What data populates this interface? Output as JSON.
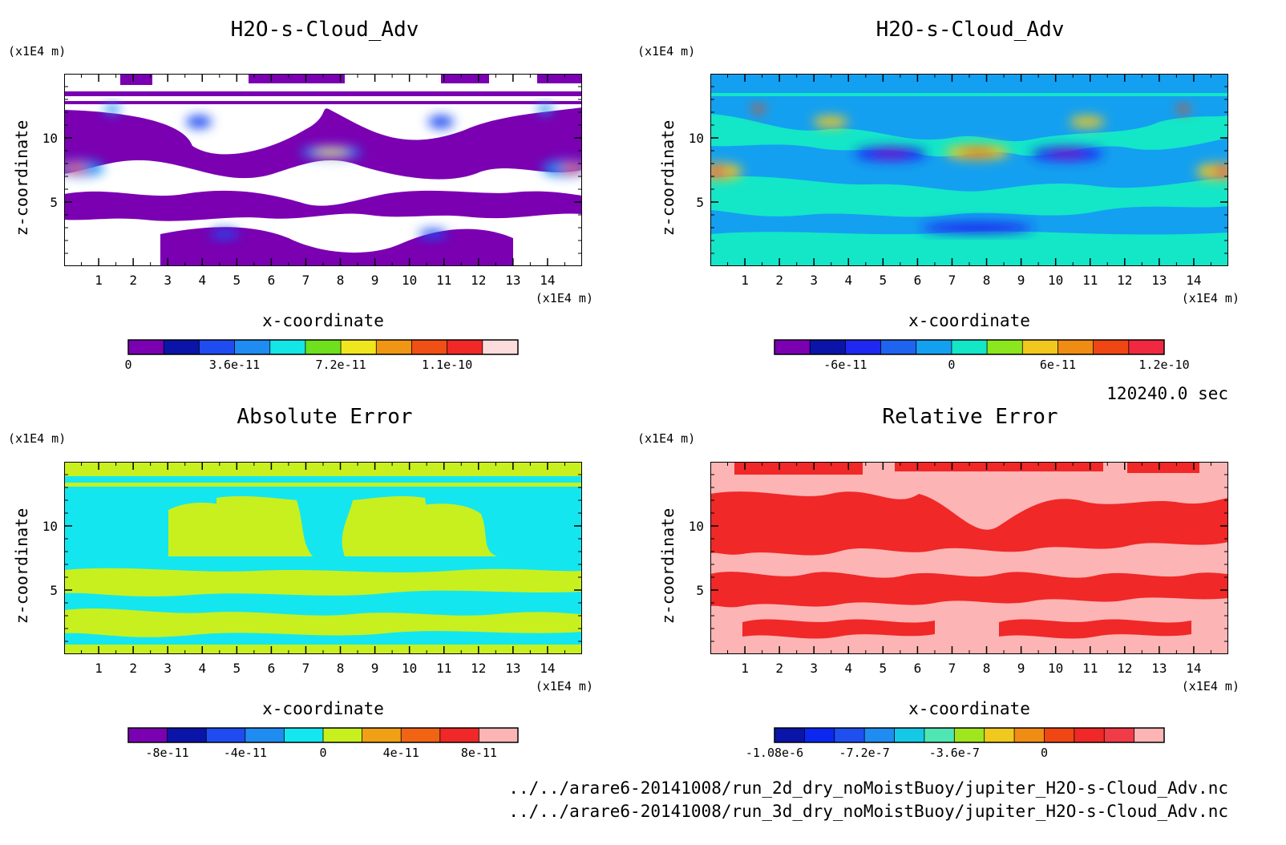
{
  "time_label": "120240.0 sec",
  "files": [
    "../../arare6-20141008/run_2d_dry_noMoistBuoy/jupiter_H2O-s-Cloud_Adv.nc",
    "../../arare6-20141008/run_3d_dry_noMoistBuoy/jupiter_H2O-s-Cloud_Adv.nc"
  ],
  "chart_data": [
    {
      "type": "heatmap",
      "title": "H2O-s-Cloud_Adv",
      "xlabel": "x-coordinate",
      "ylabel": "z-coordinate",
      "x_unit": "(x1E4 m)",
      "y_unit": "(x1E4 m)",
      "x_ticks": [
        "1",
        "2",
        "3",
        "4",
        "5",
        "6",
        "7",
        "8",
        "9",
        "10",
        "11",
        "12",
        "13",
        "14"
      ],
      "y_ticks": [
        "5",
        "10"
      ],
      "xlim": [
        0,
        15
      ],
      "ylim": [
        0,
        15
      ],
      "colorbar": {
        "colors": [
          "#7a00b2",
          "#0a14a8",
          "#1e4cf0",
          "#1e8cf0",
          "#14e6e6",
          "#6ee01e",
          "#f0e61e",
          "#f09614",
          "#f05014",
          "#f02828",
          "#fcdcdc"
        ],
        "labels": [
          "0",
          "3.6e-11",
          "7.2e-11",
          "1.1e-10"
        ],
        "label_pos": [
          0,
          3,
          6,
          9
        ]
      }
    },
    {
      "type": "heatmap",
      "title": "H2O-s-Cloud_Adv",
      "xlabel": "x-coordinate",
      "ylabel": "z-coordinate",
      "x_unit": "(x1E4 m)",
      "y_unit": "(x1E4 m)",
      "x_ticks": [
        "1",
        "2",
        "3",
        "4",
        "5",
        "6",
        "7",
        "8",
        "9",
        "10",
        "11",
        "12",
        "13",
        "14"
      ],
      "y_ticks": [
        "5",
        "10"
      ],
      "xlim": [
        0,
        15
      ],
      "ylim": [
        0,
        15
      ],
      "colorbar": {
        "colors": [
          "#7a00b2",
          "#0a14a8",
          "#1e28f0",
          "#1e64f0",
          "#14a0f0",
          "#14e6c8",
          "#8ce61e",
          "#f0c81e",
          "#f08c14",
          "#f04614",
          "#f02840"
        ],
        "labels": [
          "-6e-11",
          "0",
          "6e-11",
          "1.2e-10"
        ],
        "label_pos": [
          2,
          5,
          8,
          11
        ]
      }
    },
    {
      "type": "heatmap",
      "title": "Absolute Error",
      "xlabel": "x-coordinate",
      "ylabel": "z-coordinate",
      "x_unit": "(x1E4 m)",
      "y_unit": "(x1E4 m)",
      "x_ticks": [
        "1",
        "2",
        "3",
        "4",
        "5",
        "6",
        "7",
        "8",
        "9",
        "10",
        "11",
        "12",
        "13",
        "14"
      ],
      "y_ticks": [
        "5",
        "10"
      ],
      "xlim": [
        0,
        15
      ],
      "ylim": [
        0,
        15
      ],
      "colorbar": {
        "colors": [
          "#7a00b2",
          "#0a14a8",
          "#1e4cf0",
          "#1e8cf0",
          "#14e6f0",
          "#c8f01e",
          "#f0a014",
          "#f06414",
          "#f02828",
          "#fcb4b4"
        ],
        "labels": [
          "-8e-11",
          "-4e-11",
          "0",
          "4e-11",
          "8e-11"
        ],
        "label_pos": [
          1,
          3,
          5,
          7,
          9
        ]
      }
    },
    {
      "type": "heatmap",
      "title": "Relative Error",
      "xlabel": "x-coordinate",
      "ylabel": "z-coordinate",
      "x_unit": "(x1E4 m)",
      "y_unit": "(x1E4 m)",
      "x_ticks": [
        "1",
        "2",
        "3",
        "4",
        "5",
        "6",
        "7",
        "8",
        "9",
        "10",
        "11",
        "12",
        "13",
        "14"
      ],
      "y_ticks": [
        "5",
        "10"
      ],
      "xlim": [
        0,
        15
      ],
      "ylim": [
        0,
        15
      ],
      "colorbar": {
        "colors": [
          "#0a14a8",
          "#0a28f0",
          "#1e50f0",
          "#1e8cf0",
          "#14c8e6",
          "#50e6b4",
          "#a0e61e",
          "#f0c81e",
          "#f08c14",
          "#f04614",
          "#f02828",
          "#f03c46",
          "#fcb4b4"
        ],
        "labels": [
          "-1.08e-6",
          "-7.2e-7",
          "-3.6e-7",
          "0"
        ],
        "label_pos": [
          0,
          3,
          6,
          9
        ]
      }
    }
  ]
}
